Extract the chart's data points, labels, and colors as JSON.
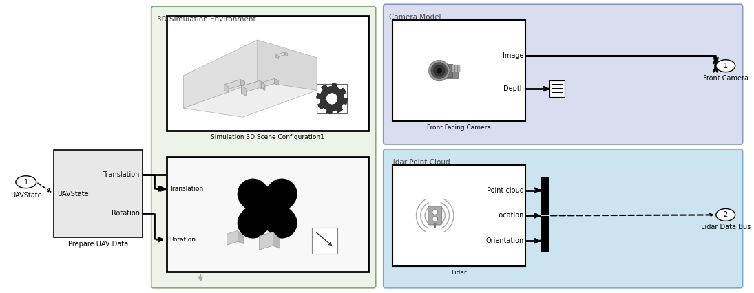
{
  "fig_bg": "#ffffff",
  "fig_w": 10.95,
  "fig_h": 4.26,
  "sim3d_title": "3D Simulation Environment",
  "sim3d_color": "#edf3e8",
  "sim3d_border": "#8aaa77",
  "cam_model_title": "Camera Model",
  "cam_model_color": "#d8ddf0",
  "cam_model_border": "#8899bb",
  "lidar_pc_title": "Lidar Point Cloud",
  "lidar_pc_color": "#cce4ef",
  "lidar_pc_border": "#77aacc",
  "label_uavstate": "UAVState",
  "label_prepare": "Prepare UAV Data",
  "label_scene": "Simulation 3D Scene Configuration1",
  "label_front_cam": "Front Facing Camera",
  "label_lidar": "Lidar",
  "label_front_camera_out": "Front Camera",
  "label_lidar_bus": "Lidar Data Bus",
  "port_translation": "Translation",
  "port_uavstate": "UAVState",
  "port_rotation": "Rotation",
  "port_image": "Image",
  "port_depth": "Depth",
  "port_point_cloud": "Point cloud",
  "port_location": "Location",
  "port_orientation": "Orientation"
}
